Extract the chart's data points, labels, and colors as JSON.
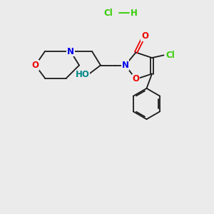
{
  "background_color": "#ebebeb",
  "bond_color": "#1a1a1a",
  "atom_colors": {
    "N": "#0000ee",
    "O": "#ee0000",
    "Cl": "#33cc00",
    "H": "#1a1a1a",
    "C": "#1a1a1a"
  },
  "hcl_color": "#33cc00",
  "ho_color": "#008888",
  "title": ""
}
